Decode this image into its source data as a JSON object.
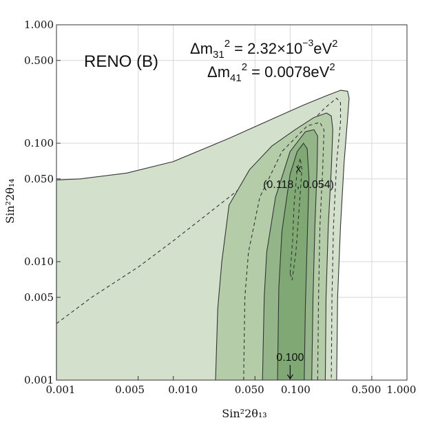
{
  "chart_data": {
    "type": "contour",
    "title": "RENO (B)",
    "annotations": {
      "dm31_lhs": "Δm",
      "dm31_sub": "31",
      "dm31_sup": "2",
      "dm31_rhs": " = 2.32×10",
      "dm31_exp": "−3",
      "dm31_unit": "eV",
      "dm31_unit_sup": "2",
      "dm41_lhs": "Δm",
      "dm41_sub": "41",
      "dm41_sup": "2",
      "dm41_rhs": " = 0.0078eV",
      "dm41_unit_sup": "2",
      "best_fit_marker": "x",
      "best_fit_label": "(0.118 , 0.054)",
      "best_fit": [
        0.118,
        0.054
      ],
      "arrow_label": "0.100",
      "arrow_x": 0.1
    },
    "xlabel": "Sin²2θ₁₃",
    "ylabel": "Sin²2θ₁₄",
    "x_scale": "log",
    "y_scale": "log",
    "xlim": [
      0.001,
      1.0
    ],
    "ylim": [
      0.001,
      1.0
    ],
    "x_ticks": [
      {
        "value": 0.001,
        "label": "0.001"
      },
      {
        "value": 0.005,
        "label": "0.005"
      },
      {
        "value": 0.01,
        "label": "0.010"
      },
      {
        "value": 0.05,
        "label": "0.050"
      },
      {
        "value": 0.1,
        "label": "0.100"
      },
      {
        "value": 0.5,
        "label": "0.500"
      },
      {
        "value": 1.0,
        "label": "1.000"
      }
    ],
    "y_ticks": [
      {
        "value": 0.001,
        "label": "0.001"
      },
      {
        "value": 0.005,
        "label": "0.005"
      },
      {
        "value": 0.01,
        "label": "0.010"
      },
      {
        "value": 0.05,
        "label": "0.050"
      },
      {
        "value": 0.1,
        "label": "0.100"
      },
      {
        "value": 0.5,
        "label": "0.500"
      },
      {
        "value": 1.0,
        "label": "1.000"
      }
    ],
    "grid": true,
    "contours": [
      {
        "name": "outer-region",
        "fill": "#d3e0cc",
        "stroke": "#333333",
        "dash": false,
        "points": [
          [
            0.001,
            0.001
          ],
          [
            0.001,
            0.049
          ],
          [
            0.0016,
            0.05
          ],
          [
            0.004,
            0.056
          ],
          [
            0.01,
            0.07
          ],
          [
            0.03,
            0.11
          ],
          [
            0.07,
            0.16
          ],
          [
            0.13,
            0.21
          ],
          [
            0.2,
            0.25
          ],
          [
            0.27,
            0.28
          ],
          [
            0.31,
            0.275
          ],
          [
            0.32,
            0.24
          ],
          [
            0.31,
            0.16
          ],
          [
            0.29,
            0.07
          ],
          [
            0.27,
            0.02
          ],
          [
            0.255,
            0.005
          ],
          [
            0.25,
            0.001
          ]
        ]
      },
      {
        "name": "dashed-outer",
        "fill": "none",
        "stroke": "#333333",
        "dash": true,
        "points": [
          [
            0.001,
            0.003
          ],
          [
            0.002,
            0.005
          ],
          [
            0.005,
            0.009
          ],
          [
            0.01,
            0.015
          ],
          [
            0.03,
            0.035
          ],
          [
            0.06,
            0.06
          ],
          [
            0.1,
            0.1
          ],
          [
            0.15,
            0.15
          ],
          [
            0.2,
            0.2
          ],
          [
            0.25,
            0.24
          ],
          [
            0.27,
            0.22
          ],
          [
            0.27,
            0.15
          ],
          [
            0.25,
            0.07
          ],
          [
            0.235,
            0.02
          ],
          [
            0.228,
            0.005
          ],
          [
            0.225,
            0.001
          ]
        ]
      },
      {
        "name": "second-region",
        "fill": "#b5cca9",
        "stroke": "#333333",
        "dash": false,
        "points": [
          [
            0.023,
            0.001
          ],
          [
            0.024,
            0.004
          ],
          [
            0.026,
            0.01
          ],
          [
            0.03,
            0.03
          ],
          [
            0.045,
            0.06
          ],
          [
            0.07,
            0.095
          ],
          [
            0.11,
            0.13
          ],
          [
            0.16,
            0.165
          ],
          [
            0.205,
            0.18
          ],
          [
            0.225,
            0.17
          ],
          [
            0.232,
            0.13
          ],
          [
            0.225,
            0.06
          ],
          [
            0.212,
            0.02
          ],
          [
            0.203,
            0.005
          ],
          [
            0.2,
            0.001
          ]
        ]
      },
      {
        "name": "dashed-middle",
        "fill": "none",
        "stroke": "#333333",
        "dash": true,
        "points": [
          [
            0.04,
            0.001
          ],
          [
            0.041,
            0.005
          ],
          [
            0.044,
            0.012
          ],
          [
            0.055,
            0.035
          ],
          [
            0.085,
            0.085
          ],
          [
            0.14,
            0.14
          ],
          [
            0.18,
            0.15
          ],
          [
            0.195,
            0.13
          ],
          [
            0.19,
            0.06
          ],
          [
            0.18,
            0.02
          ],
          [
            0.175,
            0.005
          ],
          [
            0.172,
            0.001
          ]
        ]
      },
      {
        "name": "third-region",
        "fill": "#93b589",
        "stroke": "#333333",
        "dash": false,
        "points": [
          [
            0.058,
            0.001
          ],
          [
            0.06,
            0.005
          ],
          [
            0.063,
            0.012
          ],
          [
            0.075,
            0.035
          ],
          [
            0.1,
            0.085
          ],
          [
            0.135,
            0.125
          ],
          [
            0.16,
            0.13
          ],
          [
            0.172,
            0.115
          ],
          [
            0.17,
            0.06
          ],
          [
            0.163,
            0.02
          ],
          [
            0.157,
            0.005
          ],
          [
            0.153,
            0.001
          ]
        ]
      },
      {
        "name": "inner-region",
        "fill": "#7fa874",
        "stroke": "#333333",
        "dash": false,
        "points": [
          [
            0.078,
            0.001
          ],
          [
            0.08,
            0.006
          ],
          [
            0.085,
            0.018
          ],
          [
            0.1,
            0.055
          ],
          [
            0.115,
            0.085
          ],
          [
            0.13,
            0.1
          ],
          [
            0.14,
            0.09
          ],
          [
            0.145,
            0.05
          ],
          [
            0.14,
            0.015
          ],
          [
            0.135,
            0.004
          ],
          [
            0.132,
            0.001
          ]
        ]
      },
      {
        "name": "dashed-inner",
        "fill": "none",
        "stroke": "#333333",
        "dash": true,
        "points": [
          [
            0.1,
            0.008
          ],
          [
            0.105,
            0.015
          ],
          [
            0.108,
            0.03
          ],
          [
            0.115,
            0.06
          ],
          [
            0.122,
            0.075
          ],
          [
            0.126,
            0.06
          ],
          [
            0.12,
            0.03
          ],
          [
            0.112,
            0.012
          ],
          [
            0.104,
            0.007
          ],
          [
            0.1,
            0.008
          ]
        ]
      }
    ]
  }
}
